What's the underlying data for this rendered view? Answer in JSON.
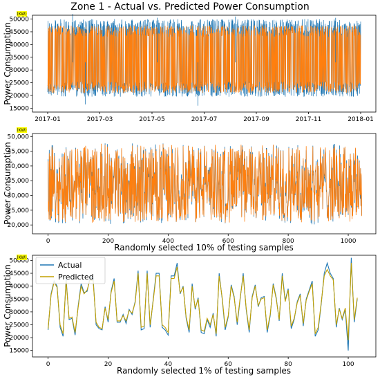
{
  "figure_title": "Zone 1 - Actual vs. Predicted Power Consumption",
  "colors": {
    "actual": "#1f77b4",
    "predicted_top": "#ff7f0e",
    "predicted_mid": "#ff7f0e",
    "predicted_bottom": "#c4a000",
    "unit_badge": "#ffff00"
  },
  "chart_data": [
    {
      "type": "line",
      "title": "Zone 1 - Actual vs. Predicted Power Consumption",
      "ylabel": "Power Consumption",
      "unit_badge": "(KW)",
      "xlabel": "",
      "x_ticks": [
        "2017-01",
        "2017-03",
        "2017-05",
        "2017-07",
        "2017-09",
        "2017-11",
        "2018-01"
      ],
      "xlim": [
        "2017-01",
        "2018-01"
      ],
      "y_ticks": [
        "15000",
        "20000",
        "25000",
        "30000",
        "35000",
        "40000",
        "45000",
        "50000"
      ],
      "ylim": [
        13500,
        51500
      ],
      "series": [
        {
          "name": "Actual",
          "summary": "dense band, approx. 20000-49000, occasional spikes to 52000 and dips to 15000"
        },
        {
          "name": "Predicted",
          "summary": "dense band, approx. 21000-47500"
        }
      ],
      "grid": false
    },
    {
      "type": "line",
      "title": "",
      "ylabel": "Power Consumption",
      "unit_badge": "(KW)",
      "xlabel": "Randomly selected 10% of testing samples",
      "x_ticks": [
        "0",
        "200",
        "400",
        "600",
        "800",
        "1000"
      ],
      "xlim": [
        -52,
        1092
      ],
      "y_ticks": [
        "20,000",
        "25,000",
        "30,000",
        "35,000",
        "40,000",
        "45,000",
        "50,000"
      ],
      "ylim": [
        17000,
        51000
      ],
      "series": [
        {
          "name": "Actual",
          "summary": "~1046 samples, range approx. 18000-50000"
        },
        {
          "name": "Predicted",
          "summary": "~1046 samples, range approx. 20000-48000"
        }
      ],
      "grid": false
    },
    {
      "type": "line",
      "title": "",
      "ylabel": "Power Consumption",
      "unit_badge": "(KW)",
      "xlabel": "Randomly selected 1% of testing samples",
      "x_ticks": [
        "0",
        "20",
        "40",
        "60",
        "80",
        "100"
      ],
      "xlim": [
        -5.2,
        109.2
      ],
      "y_ticks": [
        "15000",
        "20000",
        "25000",
        "30000",
        "35000",
        "40000",
        "45000",
        "50000"
      ],
      "ylim": [
        12500,
        52000
      ],
      "legend": {
        "placement": "upper-left",
        "entries": [
          "Actual",
          "Predicted"
        ]
      },
      "x": [
        0,
        1,
        2,
        3,
        4,
        5,
        6,
        7,
        8,
        9,
        10,
        11,
        12,
        13,
        14,
        15,
        16,
        17,
        18,
        19,
        20,
        21,
        22,
        23,
        24,
        25,
        26,
        27,
        28,
        29,
        30,
        31,
        32,
        33,
        34,
        35,
        36,
        37,
        38,
        39,
        40,
        41,
        42,
        43,
        44,
        45,
        46,
        47,
        48,
        49,
        50,
        51,
        52,
        53,
        54,
        55,
        56,
        57,
        58,
        59,
        60,
        61,
        62,
        63,
        64,
        65,
        66,
        67,
        68,
        69,
        70,
        71,
        72,
        73,
        74,
        75,
        76,
        77,
        78,
        79,
        80,
        81,
        82,
        83,
        84,
        85,
        86,
        87,
        88,
        89,
        90,
        91,
        92,
        93,
        94,
        95,
        96,
        97,
        98,
        99,
        100,
        101,
        102,
        103
      ],
      "series": [
        {
          "name": "Actual",
          "values": [
            23000,
            37000,
            42000,
            40000,
            24000,
            20500,
            43000,
            27000,
            27500,
            21000,
            32000,
            41000,
            37500,
            38000,
            43500,
            43000,
            25000,
            23500,
            23000,
            32000,
            26000,
            38000,
            43000,
            26000,
            26000,
            29000,
            25500,
            31000,
            29000,
            34000,
            46000,
            23000,
            23500,
            46000,
            24000,
            34500,
            45000,
            45000,
            24000,
            23000,
            21000,
            44000,
            44000,
            49000,
            37000,
            40000,
            27500,
            22000,
            41000,
            31000,
            35500,
            22000,
            21500,
            27000,
            24000,
            29500,
            20500,
            45000,
            35000,
            23000,
            28000,
            40500,
            36000,
            25000,
            35000,
            45000,
            31000,
            22000,
            36000,
            40500,
            32000,
            35500,
            36000,
            22000,
            28500,
            41000,
            35500,
            26500,
            45000,
            34500,
            39000,
            23500,
            27000,
            34000,
            37000,
            24500,
            35000,
            38500,
            42000,
            20500,
            23000,
            33000,
            45000,
            49000,
            45000,
            43000,
            24000,
            31500,
            27000,
            31000,
            15000,
            51000,
            26000,
            35000
          ]
        },
        {
          "name": "Predicted",
          "values": [
            23500,
            36500,
            41500,
            39500,
            25000,
            21500,
            42000,
            27500,
            28000,
            22000,
            31500,
            40000,
            37000,
            38500,
            42500,
            42000,
            26000,
            24000,
            23500,
            31500,
            27000,
            37500,
            42000,
            26500,
            26500,
            28500,
            26500,
            30500,
            29500,
            33500,
            45000,
            24000,
            24500,
            45000,
            25000,
            34000,
            44000,
            44000,
            25000,
            24000,
            22000,
            43000,
            43000,
            47500,
            37500,
            39500,
            28000,
            23000,
            40000,
            31500,
            35000,
            23000,
            22500,
            27500,
            25000,
            29000,
            21500,
            44000,
            35500,
            24000,
            28500,
            40000,
            35500,
            26000,
            35500,
            44000,
            31500,
            23000,
            35500,
            40000,
            32500,
            35000,
            35500,
            23000,
            29000,
            40500,
            35000,
            27000,
            44000,
            34000,
            38500,
            24500,
            27500,
            33500,
            36500,
            25500,
            34500,
            38000,
            41000,
            21500,
            24000,
            33500,
            44000,
            46500,
            44000,
            42500,
            25000,
            31000,
            27500,
            31500,
            19000,
            49000,
            27000,
            35500
          ]
        }
      ],
      "grid": false
    }
  ]
}
